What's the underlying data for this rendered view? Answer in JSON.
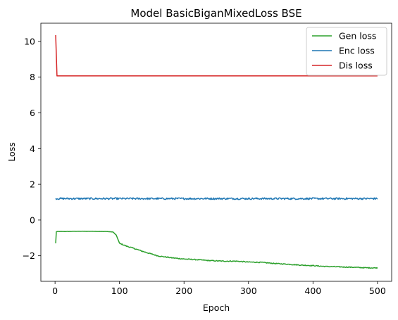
{
  "chart_data": {
    "type": "line",
    "title": "Model BasicBiganMixedLoss BSE",
    "xlabel": "Epoch",
    "ylabel": "Loss",
    "xlim": [
      -22,
      522
    ],
    "ylim": [
      -3.43,
      11.02
    ],
    "xticks": [
      0,
      100,
      200,
      300,
      400,
      500
    ],
    "yticks": [
      -2,
      0,
      2,
      4,
      6,
      8,
      10
    ],
    "grid": false,
    "legend_position": "top-right",
    "series": [
      {
        "name": "Gen loss",
        "color": "#2ca02c",
        "x": [
          1,
          2,
          5,
          10,
          20,
          30,
          40,
          50,
          60,
          70,
          80,
          90,
          95,
          100,
          110,
          120,
          140,
          160,
          180,
          200,
          220,
          240,
          260,
          280,
          300,
          320,
          340,
          360,
          380,
          400,
          420,
          440,
          460,
          480,
          500
        ],
        "values": [
          -1.3,
          -0.65,
          -0.64,
          -0.64,
          -0.64,
          -0.63,
          -0.63,
          -0.63,
          -0.63,
          -0.64,
          -0.64,
          -0.67,
          -0.85,
          -1.3,
          -1.45,
          -1.56,
          -1.8,
          -2.01,
          -2.11,
          -2.18,
          -2.22,
          -2.27,
          -2.3,
          -2.3,
          -2.35,
          -2.37,
          -2.43,
          -2.47,
          -2.52,
          -2.55,
          -2.6,
          -2.62,
          -2.64,
          -2.67,
          -2.68
        ]
      },
      {
        "name": "Enc loss",
        "color": "#1f77b4",
        "x": [
          1,
          500
        ],
        "values": [
          1.2,
          1.2
        ],
        "noise": 0.05
      },
      {
        "name": "Dis loss",
        "color": "#d62728",
        "x": [
          1,
          3,
          10,
          50,
          100,
          200,
          300,
          400,
          500
        ],
        "values": [
          10.35,
          8.07,
          8.07,
          8.07,
          8.07,
          8.07,
          8.07,
          8.07,
          8.07
        ]
      }
    ]
  }
}
